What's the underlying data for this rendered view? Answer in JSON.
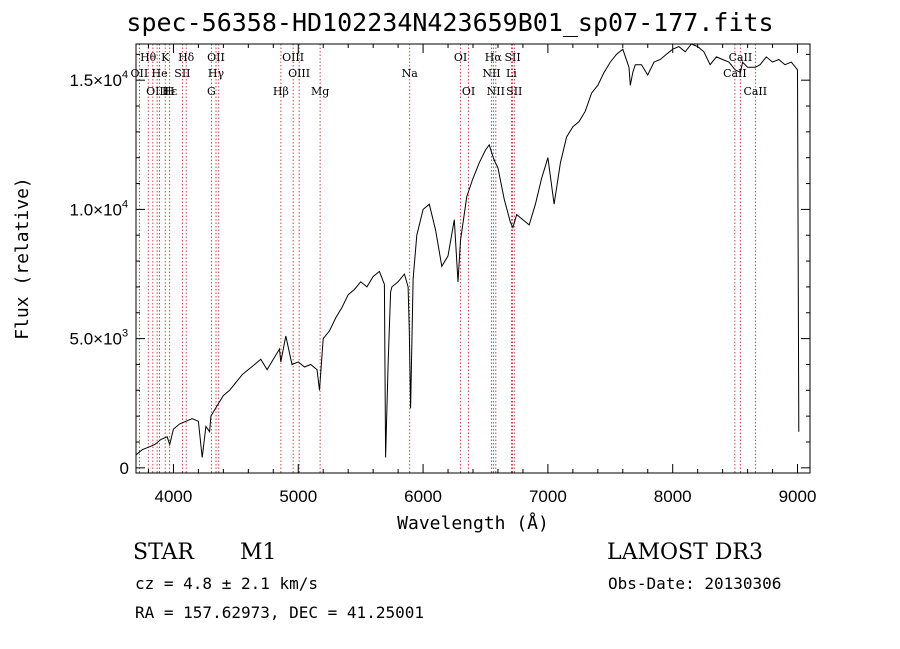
{
  "header": {
    "title": "spec-56358-HD102234N423659B01_sp07-177.fits"
  },
  "info": {
    "object_class": "STAR",
    "subclass": "M1",
    "survey": "LAMOST DR3",
    "redshift": "cz = 4.8 ± 2.1 km/s",
    "obs_date": "Obs-Date: 20130306",
    "coords": "RA = 157.62973, DEC =  41.25001"
  },
  "chart_data": {
    "type": "line",
    "title": "spec-56358-HD102234N423659B01_sp07-177.fits",
    "xlabel": "Wavelength (Å)",
    "ylabel": "Flux (relative)",
    "xlim": [
      3700,
      9100
    ],
    "ylim": [
      -200,
      16400
    ],
    "x_ticks": [
      {
        "value": 4000,
        "label": "4000"
      },
      {
        "value": 5000,
        "label": "5000"
      },
      {
        "value": 6000,
        "label": "6000"
      },
      {
        "value": 7000,
        "label": "7000"
      },
      {
        "value": 8000,
        "label": "8000"
      },
      {
        "value": 9000,
        "label": "9000"
      }
    ],
    "y_ticks": [
      {
        "value": 0,
        "label": "0",
        "exp": ""
      },
      {
        "value": 5000,
        "label": "5.0×10",
        "exp": "3"
      },
      {
        "value": 10000,
        "label": "1.0×10",
        "exp": "4"
      },
      {
        "value": 15000,
        "label": "1.5×10",
        "exp": "4"
      }
    ],
    "grid": false,
    "line_color": "#000000",
    "marker_color": "#b22222",
    "series": [
      {
        "x": [
          3700,
          3750,
          3800,
          3850,
          3900,
          3950,
          3970,
          4000,
          4050,
          4100,
          4150,
          4200,
          4230,
          4260,
          4290,
          4300,
          4350,
          4400,
          4450,
          4500,
          4550,
          4600,
          4650,
          4700,
          4750,
          4800,
          4850,
          4860,
          4880,
          4900,
          4950,
          5000,
          5050,
          5100,
          5150,
          5170,
          5200,
          5250,
          5300,
          5350,
          5400,
          5450,
          5500,
          5550,
          5600,
          5650,
          5690,
          5700,
          5720,
          5740,
          5750,
          5800,
          5850,
          5880,
          5890,
          5900,
          5920,
          5950,
          6000,
          6050,
          6100,
          6150,
          6200,
          6250,
          6280,
          6300,
          6350,
          6400,
          6450,
          6500,
          6530,
          6563,
          6580,
          6600,
          6650,
          6700,
          6720,
          6750,
          6800,
          6850,
          6900,
          6950,
          7000,
          7050,
          7100,
          7150,
          7200,
          7250,
          7300,
          7350,
          7400,
          7450,
          7500,
          7550,
          7600,
          7650,
          7660,
          7680,
          7700,
          7750,
          7800,
          7850,
          7900,
          7950,
          8000,
          8050,
          8100,
          8150,
          8200,
          8250,
          8300,
          8350,
          8400,
          8450,
          8500,
          8542,
          8560,
          8600,
          8662,
          8700,
          8750,
          8800,
          8850,
          8900,
          8950,
          9000,
          9010
        ],
        "y": [
          500,
          700,
          800,
          900,
          1100,
          1200,
          900,
          1500,
          1700,
          1800,
          1900,
          1800,
          400,
          1600,
          1400,
          2000,
          2400,
          2800,
          3000,
          3300,
          3600,
          3800,
          4000,
          4200,
          3800,
          4200,
          4600,
          4100,
          4600,
          5100,
          4000,
          4100,
          3900,
          4000,
          3800,
          3000,
          5000,
          5300,
          5800,
          6200,
          6700,
          6900,
          7200,
          7000,
          7400,
          7600,
          7100,
          400,
          4000,
          6800,
          7000,
          7200,
          7500,
          7000,
          5300,
          2300,
          7300,
          9000,
          10000,
          10200,
          9200,
          7800,
          8200,
          9600,
          7200,
          8800,
          10500,
          11200,
          11800,
          12300,
          12500,
          12000,
          11800,
          11600,
          10400,
          9500,
          9300,
          9800,
          9600,
          9400,
          10200,
          11200,
          12000,
          10200,
          11800,
          12800,
          13200,
          13400,
          13800,
          14500,
          14800,
          15300,
          15700,
          16000,
          16200,
          15500,
          14800,
          15300,
          15600,
          15600,
          15200,
          15700,
          15800,
          16000,
          16200,
          16300,
          16100,
          16400,
          16300,
          16100,
          15600,
          15900,
          15800,
          15700,
          15400,
          15300,
          15700,
          15500,
          15500,
          15600,
          15900,
          15700,
          15800,
          15600,
          15700,
          15400,
          1400
        ]
      }
    ],
    "line_markers": [
      {
        "label": "Hθ",
        "row": 1,
        "x": 3798
      },
      {
        "label": "K",
        "row": 1,
        "x": 3934
      },
      {
        "label": "Hδ",
        "row": 1,
        "x": 4102
      },
      {
        "label": "OII",
        "row": 1,
        "x": 4341
      },
      {
        "label": "OIII",
        "row": 1,
        "x": 4959
      },
      {
        "label": "OI",
        "row": 1,
        "x": 6300
      },
      {
        "label": "Hα",
        "row": 1,
        "x": 6563
      },
      {
        "label": "SII",
        "row": 1,
        "x": 6717
      },
      {
        "label": "CaII",
        "row": 1,
        "x": 8542
      },
      {
        "label": "OII",
        "row": 2,
        "x": 3727
      },
      {
        "label": "He",
        "row": 2,
        "x": 3889
      },
      {
        "label": "SII",
        "row": 2,
        "x": 4072
      },
      {
        "label": "Hγ",
        "row": 2,
        "x": 4341
      },
      {
        "label": "OIII",
        "row": 2,
        "x": 5007
      },
      {
        "label": "Na",
        "row": 2,
        "x": 5893
      },
      {
        "label": "NII",
        "row": 2,
        "x": 6548
      },
      {
        "label": "Li",
        "row": 2,
        "x": 6708
      },
      {
        "label": "CaII",
        "row": 2,
        "x": 8498
      },
      {
        "label": "OIII",
        "row": 3,
        "x": 3869
      },
      {
        "label": "Hε",
        "row": 3,
        "x": 3970
      },
      {
        "label": "H",
        "row": 3,
        "x": 3969
      },
      {
        "label": "G",
        "row": 3,
        "x": 4304
      },
      {
        "label": "Hβ",
        "row": 3,
        "x": 4861
      },
      {
        "label": "Mg",
        "row": 3,
        "x": 5175
      },
      {
        "label": "OI",
        "row": 3,
        "x": 6364
      },
      {
        "label": "NII",
        "row": 3,
        "x": 6583
      },
      {
        "label": "SII",
        "row": 3,
        "x": 6731
      },
      {
        "label": "CaII",
        "row": 3,
        "x": 8662
      }
    ],
    "marker_lines": [
      3727,
      3798,
      3835,
      3869,
      3889,
      3934,
      3970,
      4072,
      4102,
      4304,
      4341,
      4363,
      4861,
      4959,
      5007,
      5175,
      5893,
      6300,
      6364,
      6548,
      6563,
      6583,
      6708,
      6717,
      6731,
      8498,
      8542,
      8662
    ]
  }
}
